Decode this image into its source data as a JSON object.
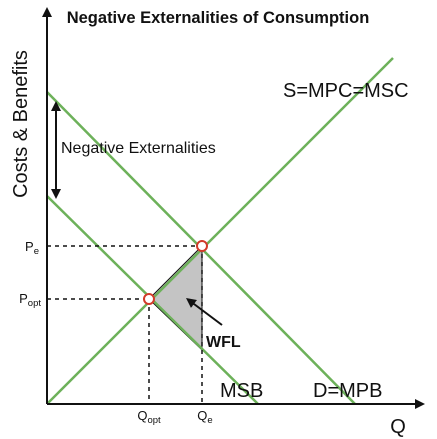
{
  "title": "Negative Externalities of Consumption",
  "y_axis_label": "Costs & Benefits",
  "x_axis_label": "Q",
  "curves": {
    "supply": "S=MPC=MSC",
    "msb": "MSB",
    "demand": "D=MPB"
  },
  "price_labels": {
    "equilibrium": {
      "base": "P",
      "sub": "e"
    },
    "optimal": {
      "base": "P",
      "sub": "opt"
    }
  },
  "quantity_labels": {
    "optimal": {
      "base": "Q",
      "sub": "opt"
    },
    "equilibrium": {
      "base": "Q",
      "sub": "e"
    }
  },
  "annotations": {
    "externality": "Negative Externalities",
    "welfare_loss": "WFL"
  },
  "colors": {
    "curve": "#6db15a",
    "axis": "#111111",
    "point_stroke": "#d23a2a",
    "wfl_fill": "#c4c4c4"
  }
}
